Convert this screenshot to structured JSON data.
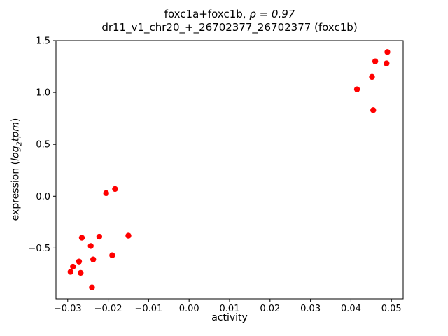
{
  "labels": {
    "title_prefix": "foxc1a+foxc1b, ",
    "title_math": "ρ = 0.97",
    "subtitle": "dr11_v1_chr20_+_26702377_26702377 (foxc1b)",
    "xlabel": "activity",
    "ylabel_prefix": "expression (",
    "ylabel_log": "log",
    "ylabel_sub": "2",
    "ylabel_tpm": "tpm",
    "ylabel_suffix": ")"
  },
  "chart_data": {
    "type": "scatter",
    "title": "foxc1a+foxc1b, ρ = 0.97",
    "subtitle": "dr11_v1_chr20_+_26702377_26702377 (foxc1b)",
    "xlabel": "activity",
    "ylabel": "expression (log2 tpm)",
    "marker_color": "#ff0000",
    "axis_color": "#000000",
    "grid": false,
    "legend": "none",
    "xlim": [
      -0.0329,
      0.0529
    ],
    "ylim": [
      -0.99,
      1.5
    ],
    "xticks": [
      -0.03,
      -0.02,
      -0.01,
      0.0,
      0.01,
      0.02,
      0.03,
      0.04,
      0.05
    ],
    "xtick_labels": [
      "−0.03",
      "−0.02",
      "−0.01",
      "0.00",
      "0.01",
      "0.02",
      "0.03",
      "0.04",
      "0.05"
    ],
    "yticks": [
      -0.5,
      0.0,
      0.5,
      1.0,
      1.5
    ],
    "ytick_labels": [
      "−0.5",
      "0.0",
      "0.5",
      "1.0",
      "1.5"
    ],
    "points": [
      [
        -0.0205,
        0.03
      ],
      [
        -0.0183,
        0.07
      ],
      [
        -0.0265,
        -0.4
      ],
      [
        -0.0222,
        -0.39
      ],
      [
        -0.015,
        -0.38
      ],
      [
        -0.0243,
        -0.48
      ],
      [
        -0.019,
        -0.57
      ],
      [
        -0.0237,
        -0.61
      ],
      [
        -0.0272,
        -0.63
      ],
      [
        -0.0287,
        -0.68
      ],
      [
        -0.0293,
        -0.73
      ],
      [
        -0.0268,
        -0.74
      ],
      [
        -0.024,
        -0.88
      ],
      [
        0.0415,
        1.03
      ],
      [
        0.0455,
        0.83
      ],
      [
        0.0452,
        1.15
      ],
      [
        0.046,
        1.3
      ],
      [
        0.0488,
        1.28
      ],
      [
        0.049,
        1.39
      ]
    ]
  }
}
